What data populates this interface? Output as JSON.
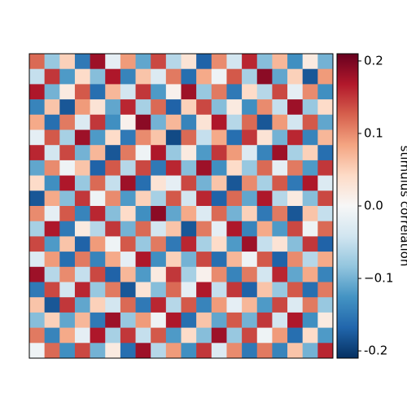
{
  "chart_data": {
    "type": "heatmap",
    "colormap": "RdBu_r",
    "colorbar_label": "stimulus correlation",
    "vlim": [
      -0.21,
      0.21
    ],
    "cticks": [
      -0.2,
      {
        "value": -0.1,
        "label": "−0.1"
      },
      {
        "value": 0,
        "label": "0.0"
      },
      0.1,
      0.2
    ],
    "z": [
      [
        0.12,
        -0.08,
        0.05,
        -0.15,
        0.18,
        -0.02,
        0.09,
        -0.11,
        0.14,
        -0.06,
        0.03,
        -0.17,
        0.1,
        -0.04,
        0.16,
        -0.09,
        0.07,
        -0.13,
        0.02,
        -0.1
      ],
      [
        -0.05,
        0.15,
        -0.12,
        0.04,
        -0.09,
        0.17,
        -0.14,
        0.06,
        -0.03,
        0.11,
        -0.16,
        0.08,
        -0.01,
        0.13,
        -0.07,
        0.19,
        -0.11,
        0.05,
        -0.18,
        0.09
      ],
      [
        0.17,
        -0.1,
        0.02,
        0.13,
        -0.16,
        0.07,
        -0.04,
        0.15,
        -0.12,
        0.01,
        0.18,
        -0.08,
        0.11,
        -0.15,
        0.04,
        -0.06,
        0.14,
        -0.02,
        0.1,
        -0.13
      ],
      [
        -0.14,
        0.06,
        -0.18,
        0.09,
        0.03,
        -0.11,
        0.16,
        -0.07,
        0.12,
        -0.17,
        0.05,
        0.14,
        -0.09,
        0.02,
        -0.13,
        0.1,
        -0.05,
        0.18,
        -0.08,
        0.04
      ],
      [
        0.08,
        -0.16,
        0.11,
        -0.03,
        0.15,
        -0.13,
        0.01,
        0.19,
        -0.1,
        0.07,
        -0.14,
        0.03,
        0.17,
        -0.06,
        0.12,
        -0.18,
        0.09,
        -0.04,
        0.13,
        -0.11
      ],
      [
        -0.02,
        0.13,
        -0.07,
        0.18,
        -0.12,
        0.04,
        -0.15,
        0.1,
        0.06,
        -0.19,
        0.12,
        -0.05,
        0.08,
        -0.16,
        0.15,
        0.03,
        -0.1,
        0.16,
        -0.14,
        0.07
      ],
      [
        0.16,
        -0.04,
        0.14,
        -0.1,
        0.07,
        -0.18,
        0.11,
        -0.01,
        0.17,
        -0.08,
        0.02,
        -0.12,
        0.15,
        0.09,
        -0.03,
        -0.14,
        0.18,
        -0.07,
        0.05,
        -0.16
      ],
      [
        -0.11,
        0.1,
        -0.01,
        0.06,
        -0.17,
        0.13,
        -0.06,
        0.14,
        -0.15,
        0.16,
        -0.09,
        0.18,
        -0.13,
        0.04,
        -0.08,
        0.12,
        -0.02,
        0.11,
        -0.12,
        0.15
      ],
      [
        0.04,
        -0.13,
        0.17,
        -0.08,
        0.12,
        -0.05,
        0.18,
        -0.16,
        0.03,
        -0.02,
        0.14,
        -0.1,
        0.06,
        -0.18,
        0.1,
        -0.07,
        0.13,
        -0.15,
        0.17,
        -0.03
      ],
      [
        -0.18,
        0.08,
        -0.09,
        0.15,
        -0.01,
        0.1,
        -0.12,
        0.05,
        -0.07,
        0.13,
        -0.04,
        0.16,
        -0.17,
        0.12,
        -0.11,
        0.17,
        -0.06,
        0.02,
        -0.09,
        0.14
      ],
      [
        0.1,
        -0.02,
        0.13,
        -0.14,
        0.16,
        -0.09,
        0.04,
        -0.13,
        0.19,
        -0.11,
        0.08,
        -0.03,
        0.12,
        -0.1,
        0.05,
        -0.15,
        0.11,
        -0.18,
        0.06,
        -0.05
      ],
      [
        -0.07,
        0.17,
        -0.15,
        0.02,
        -0.06,
        0.15,
        -0.1,
        0.12,
        -0.04,
        0.06,
        -0.18,
        0.11,
        -0.02,
        0.17,
        -0.14,
        0.08,
        -0.12,
        0.14,
        -0.01,
        0.12
      ],
      [
        0.14,
        -0.12,
        0.06,
        -0.17,
        0.09,
        -0.01,
        0.13,
        -0.08,
        0.11,
        -0.15,
        0.16,
        -0.07,
        0.04,
        -0.12,
        0.18,
        -0.05,
        0.03,
        -0.09,
        0.15,
        -0.17
      ],
      [
        -0.03,
        0.09,
        -0.16,
        0.11,
        -0.14,
        0.08,
        -0.02,
        0.17,
        -0.13,
        0.05,
        -0.1,
        0.14,
        -0.16,
        0.07,
        -0.01,
        0.13,
        -0.17,
        0.1,
        -0.06,
        0.08
      ],
      [
        0.18,
        -0.06,
        0.1,
        -0.05,
        0.14,
        -0.17,
        0.07,
        -0.12,
        0.02,
        0.15,
        -0.07,
        0.01,
        0.1,
        -0.14,
        0.11,
        -0.04,
        0.16,
        -0.11,
        0.08,
        -0.14
      ],
      [
        -0.15,
        0.14,
        -0.04,
        0.16,
        -0.08,
        0.11,
        -0.18,
        0.03,
        -0.09,
        0.12,
        -0.02,
        0.17,
        -0.05,
        0.15,
        -0.17,
        0.06,
        -0.08,
        0.13,
        -0.16,
        0.11
      ],
      [
        0.06,
        -0.18,
        0.15,
        -0.11,
        0.05,
        -0.04,
        0.12,
        -0.15,
        0.16,
        -0.06,
        0.13,
        -0.14,
        0.09,
        -0.02,
        0.07,
        -0.12,
        0.14,
        -0.03,
        0.11,
        -0.08
      ],
      [
        -0.09,
        0.05,
        -0.11,
        0.07,
        -0.15,
        0.18,
        -0.08,
        0.09,
        -0.01,
        0.17,
        -0.16,
        0.06,
        -0.11,
        0.13,
        -0.1,
        0.15,
        -0.04,
        0.17,
        -0.13,
        0.02
      ],
      [
        0.11,
        -0.14,
        0.08,
        -0.02,
        0.17,
        -0.07,
        0.15,
        -0.05,
        0.13,
        -0.12,
        0.04,
        -0.09,
        0.18,
        -0.08,
        0.14,
        -0.01,
        0.09,
        -0.16,
        0.04,
        -0.12
      ],
      [
        -0.01,
        0.12,
        -0.13,
        0.14,
        -0.1,
        0.02,
        -0.16,
        0.18,
        -0.06,
        0.09,
        -0.13,
        0.15,
        -0.03,
        0.1,
        -0.15,
        0.11,
        -0.14,
        0.06,
        -0.1,
        0.16
      ]
    ]
  }
}
